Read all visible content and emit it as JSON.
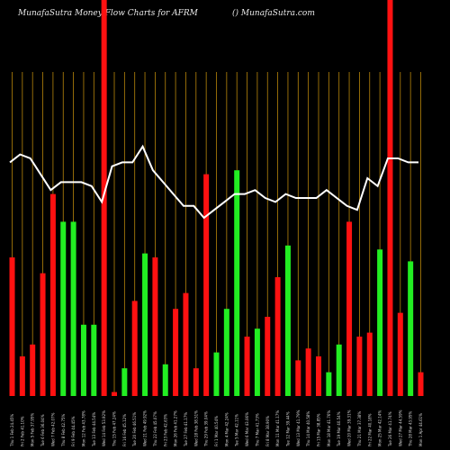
{
  "header": {
    "left": "MunafaSutra  Money Flow  Charts for AFRM",
    "right": "() MunafaSutra.com"
  },
  "colors": {
    "up": "#22ee22",
    "down": "#ff1111",
    "grid": "#b8860b",
    "line": "#ffffff",
    "background": "#000000"
  },
  "chart_data": {
    "type": "bar",
    "title": "MunafaSutra  Money Flow  Charts for AFRM",
    "grid": true,
    "ylim": [
      0,
      100
    ],
    "x": [
      "Thu 01 Feb 2024",
      "Fri 02 Feb 2024",
      "Mon 05 Feb 2024",
      "Tue 06 Feb 2024",
      "Wed 07 Feb 2024",
      "Thu 08 Feb 2024",
      "Fri 09 Feb 2024",
      "Mon 12 Feb 2024",
      "Tue 13 Feb 2024",
      "Wed 14 Feb 2024",
      "Thu 15 Feb 2024",
      "Fri 16 Feb 2024",
      "Tue 20 Feb 2024",
      "Wed 21 Feb 2024",
      "Thu 22 Feb 2024",
      "Fri 23 Feb 2024",
      "Mon 26 Feb 2024",
      "Tue 27 Feb 2024",
      "Wed 28 Feb 2024",
      "Thu 29 Feb 2024",
      "Fri 01 Mar 2024",
      "Mon 04 Mar 2024",
      "Tue 05 Mar 2024",
      "Wed 06 Mar 2024",
      "Thu 07 Mar 2024",
      "Fri 08 Mar 2024",
      "Mon 11 Mar 2024",
      "Tue 12 Mar 2024",
      "Wed 13 Mar 2024",
      "Thu 14 Mar 2024",
      "Fri 15 Mar 2024",
      "Mon 18 Mar 2024",
      "Tue 19 Mar 2024",
      "Wed 20 Mar 2024",
      "Thu 21 Mar 2024",
      "Fri 22 Mar 2024",
      "Mon 25 Mar 2024",
      "Tue 26 Mar 2024",
      "Wed 27 Mar 2024",
      "Thu 28 Mar 2024",
      "Mon 01 Apr 2024"
    ],
    "x_labels": [
      "Thu 1 Feb 24.45%",
      "Fri 2 Feb 41.10%",
      "Mon 5 Feb 37.95%",
      "Tue 6 Feb 36.04%",
      "Wed 7 Feb 42.07%",
      "Thu 8 Feb 42.75%",
      "Fri 9 Feb 44.45%",
      "Mon 12 Feb 43.78%",
      "Tue 13 Feb 44.54%",
      "Wed 14 Feb 53.92%",
      "Thu 15 Feb 47.24%",
      "Fri 16 Feb 45.12%",
      "Tue 20 Feb 46.51%",
      "Wed 21 Feb 49.92%",
      "Thu 22 Feb 45.07%",
      "Fri 23 Feb 42.63%",
      "Mon 26 Feb 41.27%",
      "Tue 27 Feb 41.17%",
      "Wed 28 Feb 38.51%",
      "Thu 29 Feb 39.04%",
      "Fri 1 Mar 40.54%",
      "Mon 4 Mar 42.24%",
      "Tue 5 Mar 42.11%",
      "Wed 6 Mar 43.06%",
      "Thu 7 Mar 41.73%",
      "Fri 8 Mar 38.90%",
      "Mon 11 Mar 41.17%",
      "Tue 12 Mar 39.44%",
      "Wed 13 Mar 41.79%",
      "Thu 14 Mar 40.58%",
      "Fri 15 Mar 38.85%",
      "Mon 18 Mar 41.76%",
      "Tue 19 Mar 40.54%",
      "Wed 20 Mar 39.31%",
      "Thu 21 Mar 37.38%",
      "Fri 22 Mar 40.18%",
      "Mon 25 Mar 42.14%",
      "Tue 26 Mar 41.74%",
      "Wed 27 Mar 44.59%",
      "Thu 28 Mar 43.95%",
      "Mon 1 Apr 44.61%"
    ],
    "series": [
      {
        "name": "money flow bars",
        "values": [
          35,
          10,
          13,
          31,
          51,
          44,
          44,
          18,
          18,
          100,
          1,
          7,
          24,
          36,
          35,
          8,
          22,
          26,
          7,
          56,
          11,
          22,
          57,
          15,
          17,
          20,
          30,
          38,
          9,
          12,
          10,
          6,
          13,
          44,
          15,
          16,
          37,
          100,
          21,
          34,
          6
        ],
        "directions": [
          "down",
          "down",
          "down",
          "down",
          "down",
          "up",
          "up",
          "up",
          "up",
          "down",
          "down",
          "up",
          "down",
          "up",
          "down",
          "up",
          "down",
          "down",
          "down",
          "down",
          "up",
          "up",
          "up",
          "down",
          "up",
          "down",
          "down",
          "up",
          "down",
          "down",
          "down",
          "up",
          "up",
          "down",
          "down",
          "down",
          "up",
          "down",
          "down",
          "up",
          "down"
        ]
      },
      {
        "name": "trend line",
        "values": [
          59,
          61,
          60,
          56,
          52,
          54,
          54,
          54,
          53,
          49,
          58,
          59,
          59,
          63,
          57,
          54,
          51,
          48,
          48,
          45,
          47,
          49,
          51,
          51,
          52,
          50,
          49,
          51,
          50,
          50,
          50,
          52,
          50,
          48,
          47,
          55,
          53,
          60,
          60,
          59,
          59
        ]
      }
    ]
  }
}
